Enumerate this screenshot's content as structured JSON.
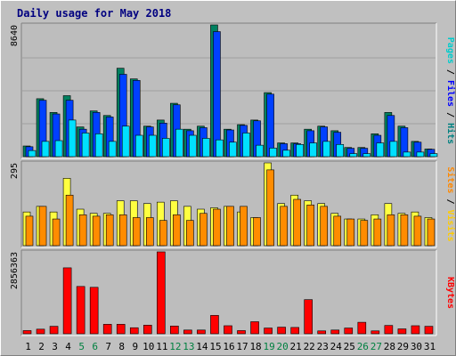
{
  "colors": {
    "background": "#c0c0c0",
    "plot_background": "#bdbdbd",
    "title": "#000080",
    "gridline": "#a0a0a0",
    "hits_label": "#008080",
    "files_label": "#0000ff",
    "pages_label": "#00cccc",
    "visits_label": "#ffcc00",
    "sites_label": "#ff8800",
    "kbytes_label": "#ff0000",
    "weekend_day": "#008040",
    "weekday": "#000000"
  },
  "chart_data": {
    "type": "bar",
    "title": "Daily usage for May 2018",
    "categories": [
      "1",
      "2",
      "3",
      "4",
      "5",
      "6",
      "7",
      "8",
      "9",
      "10",
      "11",
      "12",
      "13",
      "14",
      "15",
      "16",
      "17",
      "18",
      "19",
      "20",
      "21",
      "22",
      "23",
      "24",
      "25",
      "26",
      "27",
      "28",
      "29",
      "30",
      "31"
    ],
    "weekend_days": [
      "5",
      "6",
      "12",
      "13",
      "19",
      "20",
      "26",
      "27"
    ],
    "panels": [
      {
        "name": "traffic",
        "max_label": "8640",
        "ylim": [
          0,
          8640
        ],
        "right_labels": [
          {
            "text": "Pages",
            "color": "#00cccc"
          },
          {
            "sep": " / "
          },
          {
            "text": "Files",
            "color": "#0000ff"
          },
          {
            "sep": " / "
          },
          {
            "text": "Hits",
            "color": "#008080"
          }
        ],
        "series": [
          {
            "name": "Hits",
            "color": "#008060",
            "values": [
              700,
              3800,
              2900,
              4000,
              1950,
              3000,
              2700,
              5800,
              5100,
              2000,
              2400,
              3500,
              1800,
              2000,
              8640,
              1800,
              2100,
              2400,
              4200,
              900,
              900,
              1800,
              2000,
              1700,
              600,
              600,
              1500,
              2900,
              2000,
              1000,
              500
            ]
          },
          {
            "name": "Files",
            "color": "#0040ff",
            "values": [
              650,
              3700,
              2800,
              3700,
              1800,
              2900,
              2600,
              5400,
              5000,
              1950,
              2200,
              3400,
              1700,
              1900,
              8200,
              1750,
              2050,
              2350,
              4100,
              850,
              850,
              1700,
              1950,
              1600,
              550,
              550,
              1400,
              2700,
              1900,
              950,
              480
            ]
          },
          {
            "name": "Pages",
            "color": "#00e0ff",
            "values": [
              400,
              1000,
              1050,
              2400,
              1550,
              1500,
              1000,
              2000,
              1400,
              1400,
              1200,
              1800,
              1400,
              1200,
              1100,
              950,
              1550,
              750,
              560,
              420,
              800,
              900,
              1000,
              800,
              200,
              200,
              900,
              1000,
              300,
              300,
              200
            ]
          }
        ]
      },
      {
        "name": "visitors",
        "max_label": "295",
        "ylim": [
          0,
          295
        ],
        "right_labels": [
          {
            "text": "Sites",
            "color": "#ff8800"
          },
          {
            "sep": " / "
          },
          {
            "text": "Visits",
            "color": "#ffcc00"
          }
        ],
        "series": [
          {
            "name": "Visits",
            "color": "#ffff40",
            "values": [
              120,
              140,
              120,
              240,
              130,
              115,
              115,
              160,
              160,
              150,
              155,
              160,
              140,
              130,
              135,
              140,
              120,
              100,
              295,
              150,
              180,
              160,
              150,
              115,
              95,
              95,
              110,
              150,
              115,
              120,
              100
            ]
          },
          {
            "name": "Sites",
            "color": "#ff8c00",
            "values": [
              105,
              140,
              95,
              180,
              110,
              105,
              110,
              110,
              100,
              100,
              90,
              110,
              90,
              115,
              130,
              140,
              140,
              100,
              270,
              140,
              165,
              145,
              140,
              105,
              95,
              90,
              95,
              110,
              110,
              105,
              95
            ]
          }
        ]
      },
      {
        "name": "kbytes",
        "max_label": "2856363",
        "ylim": [
          0,
          2856363
        ],
        "right_labels": [
          {
            "text": "KBytes",
            "color": "#ff0000"
          }
        ],
        "series": [
          {
            "name": "KBytes",
            "color": "#ff0000",
            "values": [
              110000,
              160000,
              260000,
              2300000,
              1650000,
              1620000,
              330000,
              330000,
              210000,
              300000,
              2856363,
              270000,
              130000,
              130000,
              640000,
              280000,
              110000,
              420000,
              200000,
              230000,
              220000,
              1190000,
              100000,
              130000,
              200000,
              400000,
              100000,
              290000,
              170000,
              280000,
              260000
            ]
          }
        ]
      }
    ]
  }
}
